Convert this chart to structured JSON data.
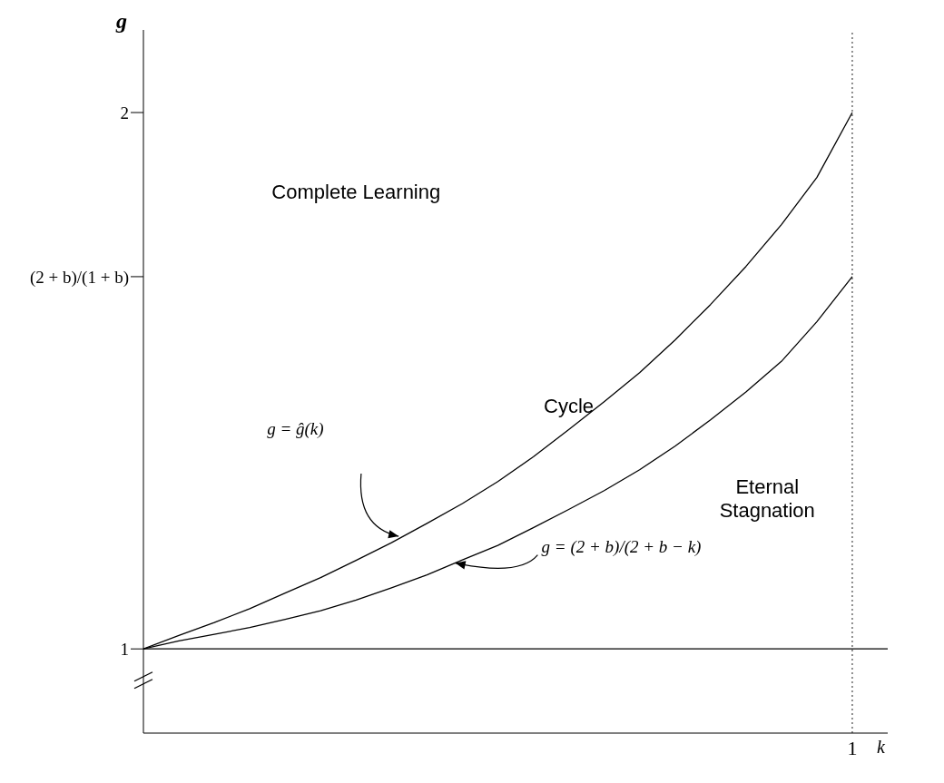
{
  "chart_data": {
    "type": "line",
    "xlabel": "k",
    "ylabel": "g",
    "categories": [
      null,
      null,
      null,
      null,
      null,
      null,
      null,
      null,
      null,
      null,
      null,
      null,
      null,
      null,
      null,
      null,
      null,
      null,
      null,
      null,
      "1",
      null
    ],
    "ylim": [
      0.843,
      2.154
    ],
    "yticks": [
      {
        "value": 1,
        "label": "1"
      },
      {
        "value": 1.694,
        "label": "(2 + b)/(1 + b)"
      },
      {
        "value": 2,
        "label": "2"
      }
    ],
    "series": [
      {
        "color": "#000000",
        "values": [
          1,
          1.025,
          1.049,
          1.075,
          1.104,
          1.133,
          1.165,
          1.198,
          1.234,
          1.271,
          1.312,
          1.358,
          1.409,
          1.461,
          1.515,
          1.576,
          1.642,
          1.713,
          1.791,
          1.879,
          2,
          null
        ]
      },
      {
        "color": "#000000",
        "values": [
          1,
          1.015,
          1.027,
          1.04,
          1.055,
          1.071,
          1.091,
          1.114,
          1.138,
          1.166,
          1.193,
          1.226,
          1.26,
          1.295,
          1.334,
          1.378,
          1.427,
          1.479,
          1.536,
          1.61,
          1.694,
          null
        ]
      }
    ],
    "ref_lines": [
      {
        "axis": "y",
        "value": 1,
        "color": "#000000",
        "line_style": "solid"
      },
      {
        "axis": "x",
        "value": "1",
        "color": "#555555",
        "line_style": "dotted"
      }
    ],
    "annotations": [
      "Complete Learning",
      "Cycle",
      "Eternal Stagnation",
      "g = ĝ(k)",
      "g = (2 + b)/(2 + b − k)"
    ],
    "marker": "none",
    "line_style": "solid"
  }
}
